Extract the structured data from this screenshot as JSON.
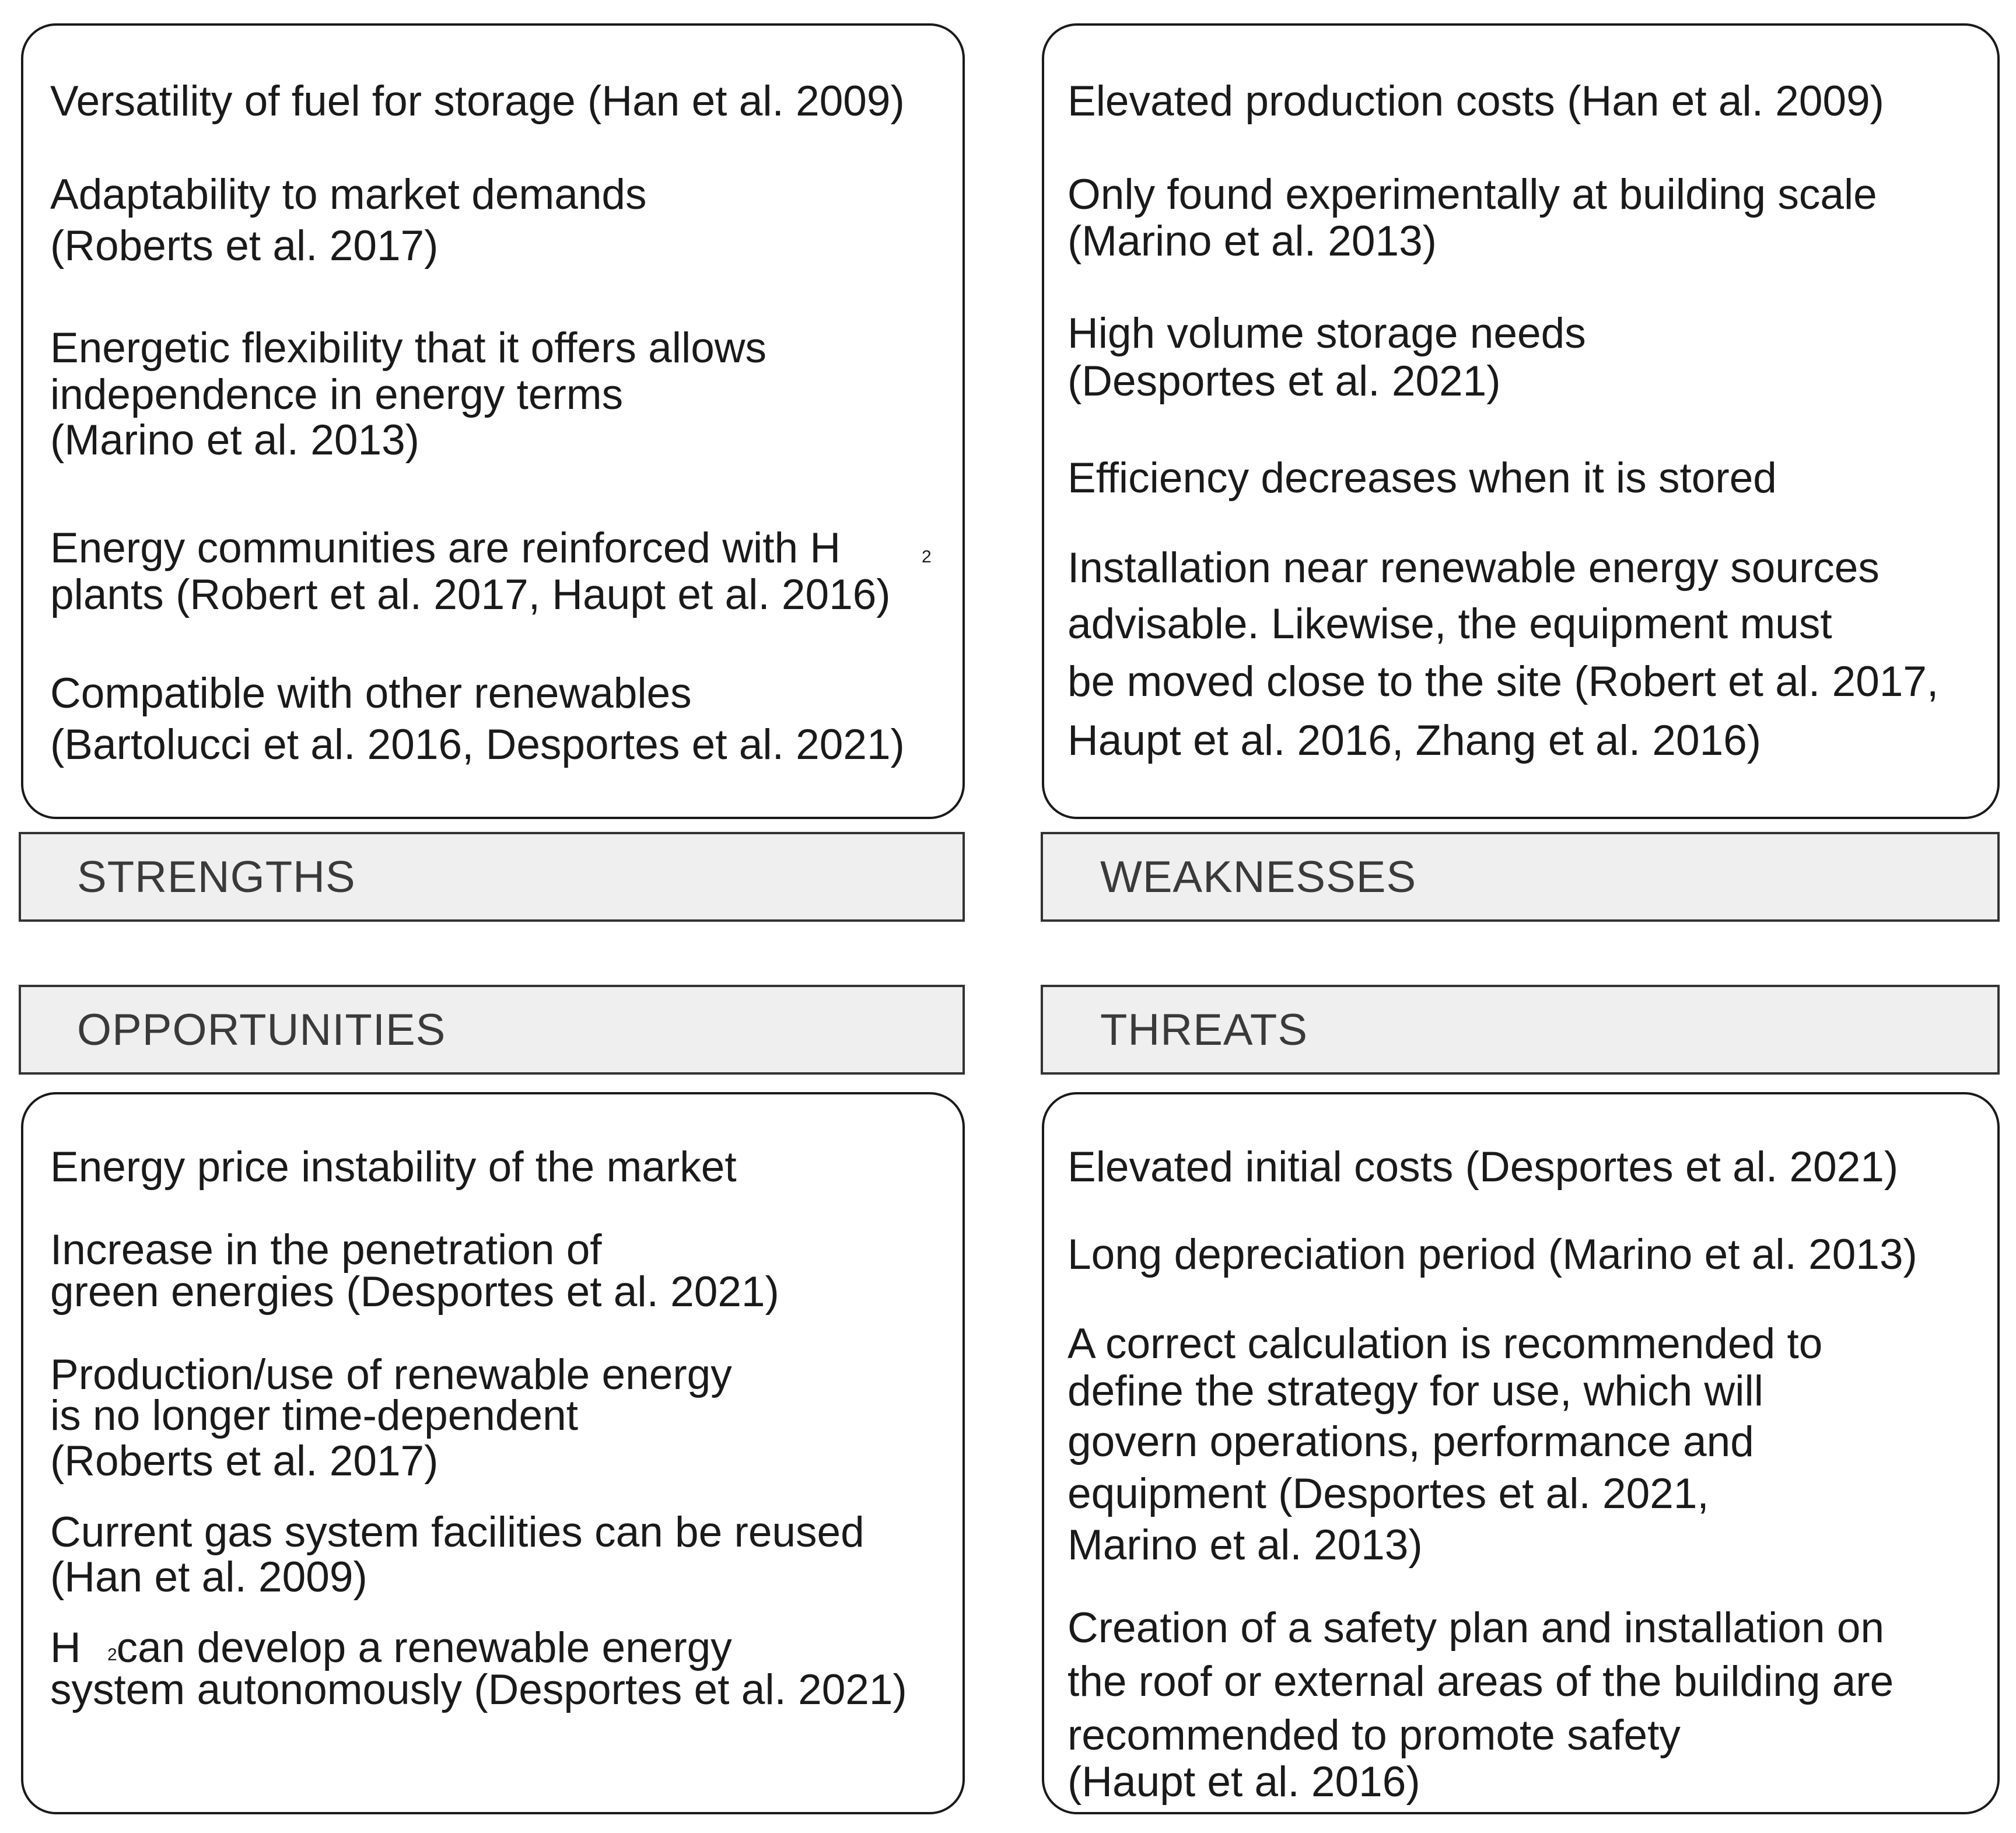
{
  "strengths": {
    "label": "STRENGTHS",
    "lines": [
      "Versatility of fuel for storage (Han et al. 2009)",
      "Adaptability to market demands",
      "(Roberts et al. 2017)",
      "Energetic flexibility that it offers allows",
      "independence in energy terms",
      "(Marino et al. 2013)",
      "Energy communities are reinforced with H",
      "plants (Robert et al. 2017, Haupt et al. 2016)",
      "Compatible with other renewables",
      "(Bartolucci et al. 2016, Desportes et al. 2021)"
    ],
    "h2_subscript": "2"
  },
  "weaknesses": {
    "label": "WEAKNESSES",
    "lines": [
      "Elevated production costs (Han et al. 2009)",
      "Only found experimentally at building scale",
      "(Marino et al. 2013)",
      "High volume storage needs",
      "(Desportes et al. 2021)",
      "Efficiency decreases when it is stored",
      "Installation near renewable energy sources",
      "advisable. Likewise, the equipment must",
      "be moved close to the site (Robert et al. 2017,",
      "Haupt et al. 2016, Zhang et al. 2016)"
    ]
  },
  "opportunities": {
    "label": "OPPORTUNITIES",
    "lines": [
      "Energy price instability of the market",
      "Increase in the penetration of",
      "green energies (Desportes et al. 2021)",
      "Production/use of renewable energy",
      "is no longer time-dependent",
      "(Roberts et al. 2017)",
      "Current gas system facilities can be reused",
      "(Han et al. 2009)",
      "H   can develop a renewable energy",
      "system autonomously (Desportes et al. 2021)"
    ],
    "h2_subscript": "2"
  },
  "threats": {
    "label": "THREATS",
    "lines": [
      "Elevated initial costs (Desportes et al. 2021)",
      "Long depreciation period (Marino et al. 2013)",
      "A correct calculation is recommended to",
      "define the strategy for use, which will",
      "govern operations, performance and",
      "equipment (Desportes et al. 2021,",
      "Marino et al. 2013)",
      "Creation of a safety plan and installation on",
      "the roof or external areas of the building are",
      "recommended to promote safety",
      "(Haupt et al. 2016)"
    ]
  }
}
